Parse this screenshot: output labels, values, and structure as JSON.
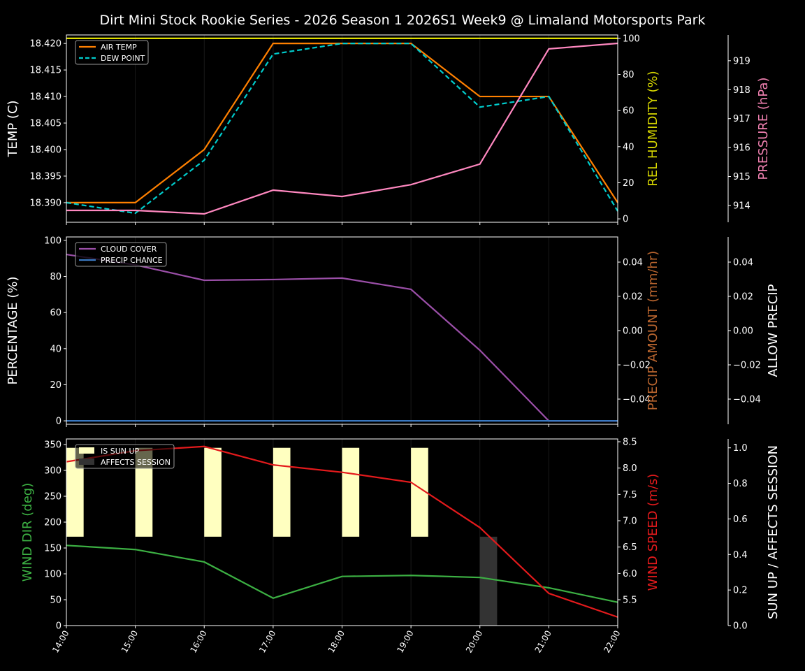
{
  "chart_data": {
    "title": "Dirt Mini Stock Rookie Series - 2026 Season 1 2026S1 Week9 @ Limaland Motorsports Park",
    "x": [
      "14:00",
      "15:00",
      "16:00",
      "17:00",
      "18:00",
      "19:00",
      "20:00",
      "21:00",
      "22:00"
    ],
    "panels": [
      {
        "type": "line",
        "left_axis": {
          "label": "TEMP (C)",
          "label_color": "#ffffff",
          "range": [
            18.3863,
            18.4216
          ],
          "ticks": [
            "18.390",
            "18.395",
            "18.400",
            "18.405",
            "18.410",
            "18.415",
            "18.420"
          ]
        },
        "right_axes": [
          {
            "label": "REL HUMIDITY (%)",
            "label_color": "#d4d400",
            "range": [
              -1.9,
              101.9
            ],
            "ticks": [
              "0",
              "20",
              "40",
              "60",
              "80",
              "100"
            ]
          },
          {
            "label": "PRESSURE (hPa)",
            "label_color": "#f080b0",
            "range": [
              913.42,
              919.89
            ],
            "ticks": [
              "914",
              "915",
              "916",
              "917",
              "918",
              "919"
            ]
          }
        ],
        "legend": {
          "placement": "upper-left",
          "entries": [
            "AIR TEMP",
            "DEW POINT"
          ]
        },
        "series": [
          {
            "name": "AIR TEMP",
            "axis": "left",
            "color": "#ff8000",
            "dash": false,
            "values": [
              18.39,
              18.39,
              18.4,
              18.42,
              18.42,
              18.42,
              18.41,
              18.41,
              18.39
            ]
          },
          {
            "name": "DEW POINT",
            "axis": "left",
            "color": "#00cccc",
            "dash": true,
            "values": [
              18.39,
              18.388,
              18.398,
              18.418,
              18.42,
              18.42,
              18.408,
              18.41,
              18.3884
            ]
          },
          {
            "axis": "right0",
            "color": "#e0e000",
            "dash": false,
            "values": [
              100,
              100,
              100,
              100,
              100,
              100,
              100,
              100,
              100
            ]
          },
          {
            "axis": "right1",
            "color": "#ff88c0",
            "dash": false,
            "values": [
              913.83,
              913.83,
              913.71,
              914.53,
              914.31,
              914.72,
              915.43,
              919.41,
              919.6
            ]
          }
        ]
      },
      {
        "type": "line",
        "left_axis": {
          "label": "PERCENTAGE (%)",
          "label_color": "#ffffff",
          "range": [
            -1.9,
            101.9
          ],
          "ticks": [
            "0",
            "20",
            "40",
            "60",
            "80",
            "100"
          ]
        },
        "right_axes": [
          {
            "label": "PRECIP AMOUNT (mm/hr)",
            "label_color": "#b8642e",
            "range": [
              -0.0547,
              0.0547
            ],
            "ticks": [
              "−0.04",
              "−0.02",
              "0.00",
              "0.02",
              "0.04"
            ]
          },
          {
            "label": "ALLOW PRECIP",
            "label_color": "#ffffff",
            "range": [
              -0.0547,
              0.0547
            ],
            "ticks": [
              "−0.04",
              "−0.02",
              "0.00",
              "0.02",
              "0.04"
            ]
          }
        ],
        "legend": {
          "placement": "upper-left",
          "entries": [
            "CLOUD COVER",
            "PRECIP CHANCE"
          ]
        },
        "series": [
          {
            "name": "CLOUD COVER",
            "axis": "left",
            "color": "#9b4fa8",
            "dash": false,
            "values": [
              92.2,
              86.4,
              77.9,
              78.3,
              79.1,
              72.9,
              39.1,
              0,
              0
            ]
          },
          {
            "name": "PRECIP CHANCE",
            "axis": "left",
            "color": "#3a78c0",
            "dash": false,
            "values": [
              0,
              0,
              0,
              0,
              0,
              0,
              0,
              0,
              0
            ]
          }
        ]
      },
      {
        "type": "line+bar",
        "left_axis": {
          "label": "WIND DIR (deg)",
          "label_color": "#3cb043",
          "range": [
            0,
            360.8
          ],
          "ticks": [
            "0",
            "50",
            "100",
            "150",
            "200",
            "250",
            "300",
            "350"
          ]
        },
        "right_axes": [
          {
            "label": "WIND SPEED (m/s)",
            "label_color": "#e41a1c",
            "range": [
              5.009,
              8.553
            ],
            "ticks": [
              "5.5",
              "6.0",
              "6.5",
              "7.0",
              "7.5",
              "8.0",
              "8.5"
            ]
          },
          {
            "label": "SUN UP / AFFECTS SESSION",
            "label_color": "#ffffff",
            "range": [
              0,
              1.05
            ],
            "ticks": [
              "0.0",
              "0.2",
              "0.4",
              "0.6",
              "0.8",
              "1.0"
            ]
          }
        ],
        "legend": {
          "placement": "upper-left",
          "entries": [
            "IS SUN UP",
            "AFFECTS SESSION"
          ]
        },
        "bars": [
          {
            "name": "IS SUN UP",
            "color": "#ffffc0",
            "values": [
              1,
              1,
              1,
              1,
              1,
              1,
              0,
              0,
              0
            ]
          },
          {
            "name": "AFFECTS SESSION",
            "color": "#333333",
            "values": [
              0,
              0,
              0,
              0,
              0,
              0,
              1,
              0,
              0
            ]
          }
        ],
        "series": [
          {
            "axis": "left",
            "color": "#3cb043",
            "dash": false,
            "values": [
              155,
              147,
              123,
              53,
              95,
              97,
              93,
              73,
              45
            ]
          },
          {
            "axis": "right0",
            "color": "#e41a1c",
            "dash": false,
            "values": [
              8.12,
              8.33,
              8.41,
              8.06,
              7.92,
              7.73,
              6.87,
              5.62,
              5.17
            ]
          }
        ]
      }
    ]
  }
}
